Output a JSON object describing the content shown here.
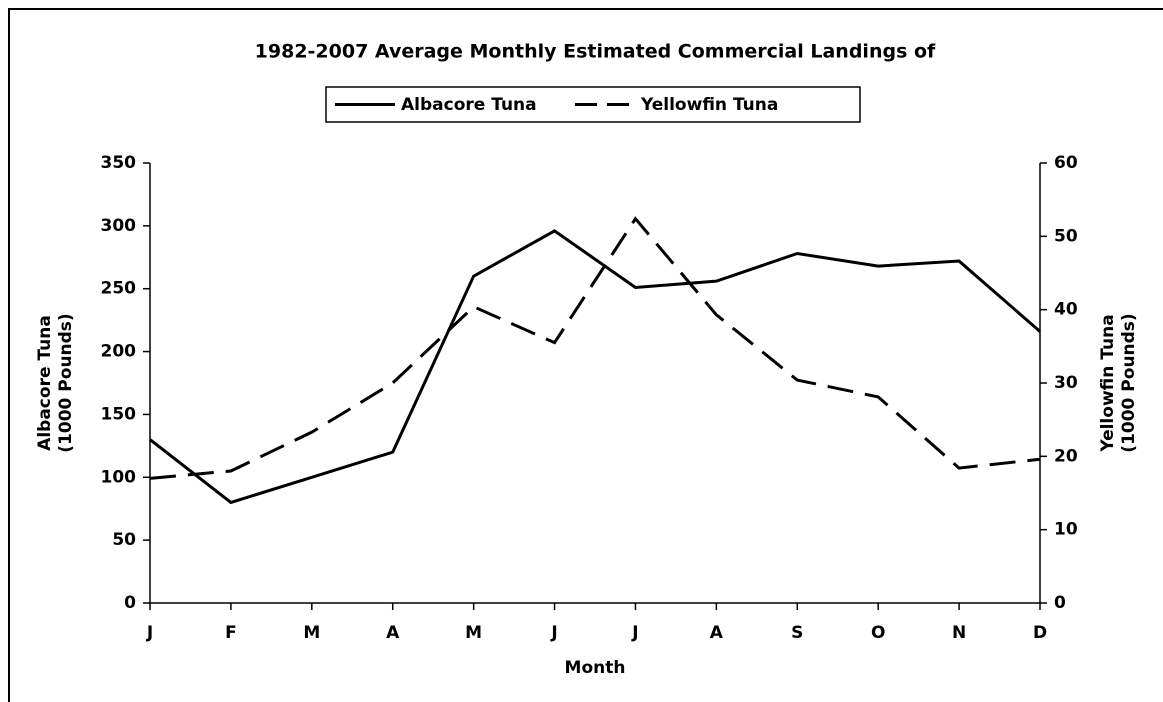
{
  "chart_data": {
    "type": "line",
    "title": "1982-2007 Average Monthly Estimated Commercial Landings of",
    "x_label": "Month",
    "y_label": [
      "Albacore Tuna",
      "(1000 Pounds)"
    ],
    "y2_label": [
      "Yellowfin Tuna",
      "(1000 Pounds)"
    ],
    "categories": [
      "J",
      "F",
      "M",
      "A",
      "M",
      "J",
      "J",
      "A",
      "S",
      "O",
      "N",
      "D"
    ],
    "series": [
      {
        "name": "Albacore Tuna",
        "color": "#000000",
        "dash": "solid",
        "axis": "y",
        "values": [
          130,
          80,
          100,
          120,
          260,
          296,
          251,
          256,
          278,
          268,
          272,
          216
        ]
      },
      {
        "name": "Yellowfin Tuna",
        "color": "#000000",
        "dash": "dashed",
        "axis": "y2",
        "values": [
          17,
          18,
          23.3,
          30,
          40.4,
          35.5,
          52.4,
          39.3,
          30.4,
          28.1,
          18.4,
          19.6
        ]
      }
    ],
    "ylim": [
      0,
      350
    ],
    "yticks": [
      0,
      50,
      100,
      150,
      200,
      250,
      300,
      350
    ],
    "y2lim": [
      0,
      60
    ],
    "y2ticks": [
      0,
      10,
      20,
      30,
      40,
      50,
      60
    ],
    "grid": false,
    "legend": "top"
  }
}
